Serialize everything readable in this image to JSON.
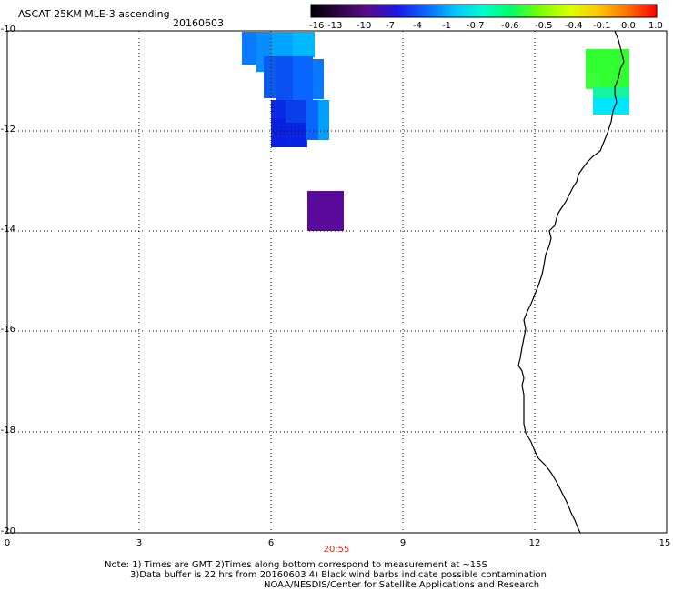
{
  "header": {
    "title": "ASCAT 25KM MLE-3 ascending",
    "date": "20160603"
  },
  "colorbar": {
    "labels": [
      "-16",
      "-13",
      "-10",
      "-7",
      "-4",
      "-1",
      "-0.7",
      "-0.6",
      "-0.5",
      "-0.4",
      "-0.1",
      "0.0",
      "1.0"
    ],
    "colors": [
      "#000000",
      "#5a0a8a",
      "#1a1ae6",
      "#0a64ff",
      "#00c8ff",
      "#00ffc8",
      "#00ff64",
      "#78ff00",
      "#dcff00",
      "#ffc800",
      "#ff7800",
      "#ff3c00",
      "#ff0000"
    ]
  },
  "axes": {
    "y_ticks": [
      "-10",
      "-12",
      "-14",
      "-16",
      "-18",
      "-20"
    ],
    "x_ticks": [
      "0",
      "3",
      "6",
      "9",
      "12",
      "15"
    ],
    "time_label": "20:55"
  },
  "notes": {
    "line1": "Note: 1) Times are GMT 2)Times along bottom correspond to measurement at ~15S",
    "line2": "3)Data buffer is 22 hrs from 20160603 4) Black wind barbs indicate possible contamination",
    "line3": "NOAA/NESDIS/Center for Satellite Applications and Research"
  },
  "colors": {
    "background": "#ffffff",
    "grid": "#000000",
    "coastline": "#000000",
    "time_label": "#c8321e"
  }
}
